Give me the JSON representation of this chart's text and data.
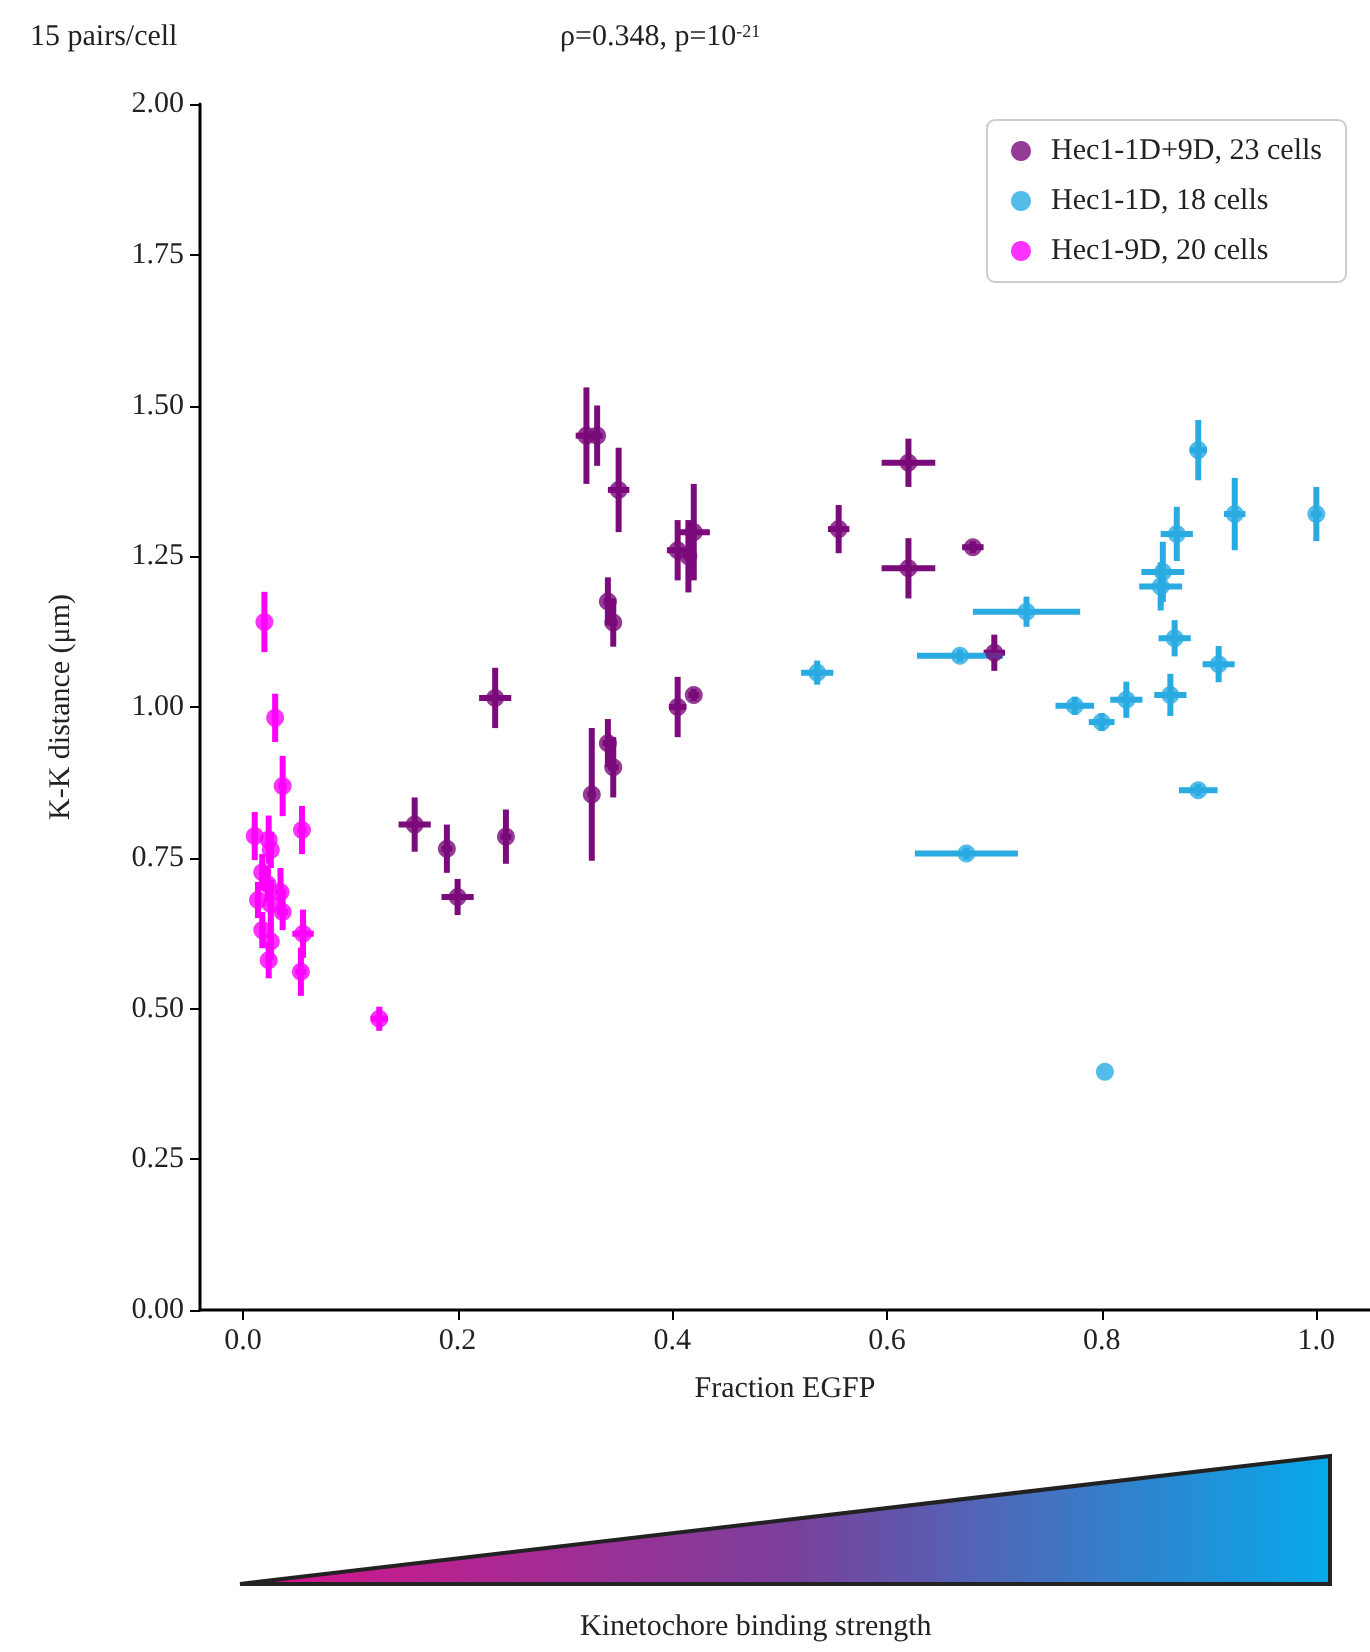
{
  "chart_data": {
    "type": "scatter",
    "xlabel": "Fraction EGFP",
    "ylabel": "K-K distance (μm)",
    "annotations": [
      "15 pairs/cell",
      "ρ=0.348, p=10$^{-21}$",
      "Kinetochore binding strength"
    ],
    "xlim": [
      -0.04,
      1.05
    ],
    "ylim": [
      0,
      2
    ],
    "xticks": [
      {
        "value": 0,
        "label": "0.0"
      },
      {
        "value": 0.2,
        "label": "0.2"
      },
      {
        "value": 0.4,
        "label": "0.4"
      },
      {
        "value": 0.6,
        "label": "0.6"
      },
      {
        "value": 0.8,
        "label": "0.8"
      },
      {
        "value": 1,
        "label": "1.0"
      }
    ],
    "yticks": [
      {
        "value": 0,
        "label": "0.00"
      },
      {
        "value": 0.25,
        "label": "0.25"
      },
      {
        "value": 0.5,
        "label": "0.50"
      },
      {
        "value": 0.75,
        "label": "0.75"
      },
      {
        "value": 1,
        "label": "1.00"
      },
      {
        "value": 1.25,
        "label": "1.25"
      },
      {
        "value": 1.5,
        "label": "1.50"
      },
      {
        "value": 1.75,
        "label": "1.75"
      },
      {
        "value": 2,
        "label": "2.00"
      }
    ],
    "grid": false,
    "legend": "top right",
    "marker": "circle",
    "series": [
      {
        "name": "Hec1-1D+9D, 23 cells",
        "color": "#7b0a7b",
        "x": [
          0.32,
          0.33,
          0.35,
          0.34,
          0.345,
          0.405,
          0.42,
          0.415,
          0.405,
          0.42,
          0.34,
          0.345,
          0.325,
          0.235,
          0.16,
          0.19,
          0.2,
          0.245,
          0.62,
          0.62,
          0.555,
          0.68,
          0.7
        ],
        "values": [
          1.45,
          1.45,
          1.36,
          1.175,
          1.14,
          1.26,
          1.29,
          1.25,
          1.0,
          1.02,
          0.94,
          0.9,
          0.855,
          1.015,
          0.805,
          0.765,
          0.685,
          0.785,
          1.405,
          1.23,
          1.295,
          1.265,
          1.09
        ],
        "errors": [
          0.08,
          0.05,
          0.07,
          0.04,
          0.04,
          0.05,
          0.08,
          0.06,
          0.05,
          0.01,
          0.04,
          0.05,
          0.11,
          0.05,
          0.045,
          0.04,
          0.03,
          0.045,
          0.04,
          0.05,
          0.04,
          0.01,
          0.03
        ],
        "xerrors": [
          0.01,
          0.005,
          0.01,
          0.004,
          0.004,
          0.01,
          0.015,
          0.005,
          0.008,
          0.005,
          0.005,
          0.005,
          0.004,
          0.015,
          0.015,
          0.005,
          0.015,
          0.005,
          0.025,
          0.025,
          0.01,
          0.01,
          0.01
        ]
      },
      {
        "name": "Hec1-1D, 18 cells",
        "color": "#29abe2",
        "x": [
          0.89,
          0.924,
          1.0,
          0.87,
          0.857,
          0.855,
          0.73,
          0.668,
          0.868,
          0.909,
          0.775,
          0.8,
          0.823,
          0.864,
          0.89,
          0.674,
          0.803,
          0.535
        ],
        "values": [
          1.426,
          1.32,
          1.32,
          1.287,
          1.224,
          1.2,
          1.158,
          1.085,
          1.114,
          1.071,
          1.002,
          0.975,
          1.012,
          1.02,
          0.862,
          0.757,
          0.395,
          1.057
        ],
        "errors": [
          0.05,
          0.06,
          0.045,
          0.045,
          0.05,
          0.04,
          0.025,
          0.01,
          0.03,
          0.03,
          0.015,
          0.015,
          0.03,
          0.035,
          0.01,
          0.01,
          null,
          0.02
        ],
        "xerrors": [
          0.008,
          0.01,
          0.005,
          0.015,
          0.02,
          0.02,
          0.05,
          0.04,
          0.015,
          0.015,
          0.018,
          0.012,
          0.015,
          0.015,
          0.018,
          0.048,
          null,
          0.015
        ]
      },
      {
        "name": "Hec1-9D, 20 cells",
        "color": "#ff00ff",
        "x": [
          0.02,
          0.03,
          0.037,
          0.055,
          0.011,
          0.024,
          0.026,
          0.018,
          0.023,
          0.026,
          0.035,
          0.037,
          0.021,
          0.018,
          0.026,
          0.056,
          0.024,
          0.054,
          0.127,
          0.014
        ],
        "values": [
          1.141,
          0.982,
          0.869,
          0.796,
          0.786,
          0.78,
          0.763,
          0.726,
          0.706,
          0.673,
          0.693,
          0.66,
          null,
          0.63,
          0.611,
          0.624,
          0.58,
          0.561,
          0.483,
          0.68
        ],
        "errors": [
          0.05,
          0.04,
          0.05,
          0.04,
          0.04,
          0.04,
          0.03,
          0.03,
          0.03,
          0.04,
          0.04,
          0.03,
          null,
          0.03,
          0.03,
          0.04,
          0.03,
          0.04,
          0.02,
          0.03
        ],
        "xerrors": [
          0.003,
          0.003,
          0.004,
          0.004,
          0.003,
          0.003,
          0.003,
          0.003,
          0.003,
          0.003,
          0.005,
          0.005,
          null,
          0.003,
          0.003,
          0.01,
          0.003,
          0.005,
          0.008,
          0.003
        ]
      }
    ]
  }
}
